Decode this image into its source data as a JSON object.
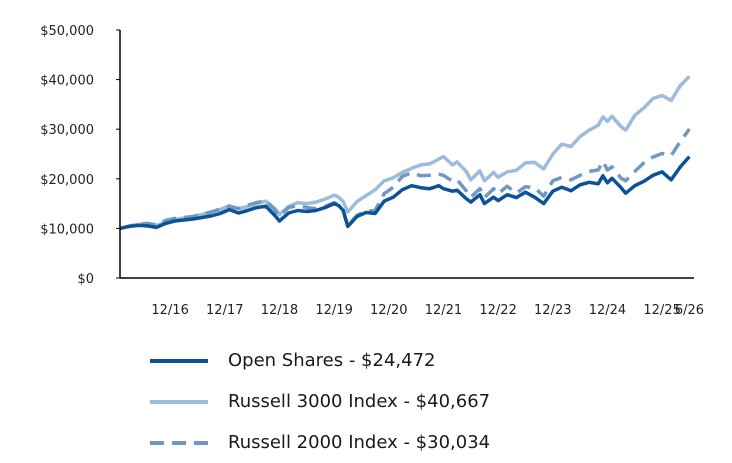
{
  "chart_data": {
    "type": "line",
    "ylim": [
      0,
      50000
    ],
    "y_ticks": [
      {
        "value": 0,
        "label": "$0"
      },
      {
        "value": 10000,
        "label": "$10,000"
      },
      {
        "value": 20000,
        "label": "$20,000"
      },
      {
        "value": 30000,
        "label": "$30,000"
      },
      {
        "value": 40000,
        "label": "$40,000"
      },
      {
        "value": 50000,
        "label": "$50,000"
      }
    ],
    "x_ticks": [
      {
        "date": "2016-12",
        "label": "12/16"
      },
      {
        "date": "2017-12",
        "label": "12/17"
      },
      {
        "date": "2018-12",
        "label": "12/18"
      },
      {
        "date": "2019-12",
        "label": "12/19"
      },
      {
        "date": "2020-12",
        "label": "12/20"
      },
      {
        "date": "2021-12",
        "label": "12/21"
      },
      {
        "date": "2022-12",
        "label": "12/22"
      },
      {
        "date": "2023-12",
        "label": "12/23"
      },
      {
        "date": "2024-12",
        "label": "12/24"
      },
      {
        "date": "2025-12",
        "label": "12/25"
      },
      {
        "date": "2026-06",
        "label": "6/26"
      }
    ],
    "xlim": [
      "2016-01",
      "2026-07"
    ],
    "grid": false,
    "legend_position": "bottom",
    "series": [
      {
        "name": "Open Shares - $24,472",
        "color": "#0c5296",
        "dash": "solid",
        "points": [
          [
            "2016-01",
            10000
          ],
          [
            "2016-03",
            10400
          ],
          [
            "2016-05",
            10600
          ],
          [
            "2016-07",
            10500
          ],
          [
            "2016-09",
            10200
          ],
          [
            "2016-11",
            11000
          ],
          [
            "2017-01",
            11500
          ],
          [
            "2017-03",
            11700
          ],
          [
            "2017-05",
            11900
          ],
          [
            "2017-07",
            12200
          ],
          [
            "2017-09",
            12500
          ],
          [
            "2017-11",
            13000
          ],
          [
            "2018-01",
            13800
          ],
          [
            "2018-03",
            13100
          ],
          [
            "2018-05",
            13600
          ],
          [
            "2018-07",
            14200
          ],
          [
            "2018-09",
            14500
          ],
          [
            "2018-11",
            12600
          ],
          [
            "2018-12",
            11500
          ],
          [
            "2019-02",
            13100
          ],
          [
            "2019-04",
            13600
          ],
          [
            "2019-06",
            13400
          ],
          [
            "2019-08",
            13600
          ],
          [
            "2019-10",
            14200
          ],
          [
            "2019-12",
            15000
          ],
          [
            "2020-01",
            14600
          ],
          [
            "2020-02",
            13600
          ],
          [
            "2020-03",
            10400
          ],
          [
            "2020-05",
            12400
          ],
          [
            "2020-07",
            13200
          ],
          [
            "2020-09",
            13000
          ],
          [
            "2020-11",
            15500
          ],
          [
            "2021-01",
            16300
          ],
          [
            "2021-03",
            17800
          ],
          [
            "2021-05",
            18600
          ],
          [
            "2021-07",
            18200
          ],
          [
            "2021-09",
            18000
          ],
          [
            "2021-11",
            18600
          ],
          [
            "2021-12",
            18000
          ],
          [
            "2022-02",
            17500
          ],
          [
            "2022-03",
            17700
          ],
          [
            "2022-05",
            16000
          ],
          [
            "2022-06",
            15300
          ],
          [
            "2022-08",
            16800
          ],
          [
            "2022-09",
            15000
          ],
          [
            "2022-11",
            16300
          ],
          [
            "2022-12",
            15600
          ],
          [
            "2023-02",
            16800
          ],
          [
            "2023-04",
            16200
          ],
          [
            "2023-06",
            17300
          ],
          [
            "2023-08",
            16300
          ],
          [
            "2023-10",
            15000
          ],
          [
            "2023-12",
            17500
          ],
          [
            "2024-02",
            18300
          ],
          [
            "2024-04",
            17600
          ],
          [
            "2024-06",
            18800
          ],
          [
            "2024-08",
            19300
          ],
          [
            "2024-10",
            19000
          ],
          [
            "2024-11",
            20600
          ],
          [
            "2024-12",
            19200
          ],
          [
            "2025-01",
            20100
          ],
          [
            "2025-03",
            18200
          ],
          [
            "2025-04",
            17100
          ],
          [
            "2025-06",
            18600
          ],
          [
            "2025-08",
            19500
          ],
          [
            "2025-10",
            20700
          ],
          [
            "2025-12",
            21400
          ],
          [
            "2026-02",
            19800
          ],
          [
            "2026-04",
            22400
          ],
          [
            "2026-06",
            24472
          ]
        ]
      },
      {
        "name": "Russell 3000 Index - $40,667",
        "color": "#9bbcdc",
        "dash": "solid",
        "points": [
          [
            "2016-01",
            10000
          ],
          [
            "2016-03",
            10500
          ],
          [
            "2016-05",
            10800
          ],
          [
            "2016-07",
            10900
          ],
          [
            "2016-09",
            10600
          ],
          [
            "2016-11",
            11200
          ],
          [
            "2017-01",
            11800
          ],
          [
            "2017-03",
            12100
          ],
          [
            "2017-05",
            12400
          ],
          [
            "2017-07",
            12800
          ],
          [
            "2017-09",
            13200
          ],
          [
            "2017-11",
            13800
          ],
          [
            "2018-01",
            14600
          ],
          [
            "2018-03",
            14000
          ],
          [
            "2018-05",
            14400
          ],
          [
            "2018-07",
            15000
          ],
          [
            "2018-09",
            15500
          ],
          [
            "2018-11",
            14000
          ],
          [
            "2018-12",
            12800
          ],
          [
            "2019-02",
            14400
          ],
          [
            "2019-04",
            15200
          ],
          [
            "2019-06",
            15000
          ],
          [
            "2019-08",
            15300
          ],
          [
            "2019-10",
            15900
          ],
          [
            "2019-12",
            16700
          ],
          [
            "2020-01",
            16300
          ],
          [
            "2020-02",
            15400
          ],
          [
            "2020-03",
            13300
          ],
          [
            "2020-05",
            15400
          ],
          [
            "2020-07",
            16600
          ],
          [
            "2020-09",
            17800
          ],
          [
            "2020-11",
            19600
          ],
          [
            "2021-01",
            20200
          ],
          [
            "2021-03",
            21300
          ],
          [
            "2021-05",
            22100
          ],
          [
            "2021-07",
            22800
          ],
          [
            "2021-09",
            23000
          ],
          [
            "2021-11",
            24000
          ],
          [
            "2021-12",
            24500
          ],
          [
            "2022-02",
            22800
          ],
          [
            "2022-03",
            23400
          ],
          [
            "2022-05",
            21500
          ],
          [
            "2022-06",
            19800
          ],
          [
            "2022-08",
            21600
          ],
          [
            "2022-09",
            19600
          ],
          [
            "2022-11",
            21300
          ],
          [
            "2022-12",
            20300
          ],
          [
            "2023-02",
            21400
          ],
          [
            "2023-04",
            21700
          ],
          [
            "2023-06",
            23200
          ],
          [
            "2023-08",
            23300
          ],
          [
            "2023-10",
            22000
          ],
          [
            "2023-12",
            25000
          ],
          [
            "2024-02",
            27000
          ],
          [
            "2024-04",
            26500
          ],
          [
            "2024-06",
            28500
          ],
          [
            "2024-08",
            29800
          ],
          [
            "2024-10",
            30800
          ],
          [
            "2024-11",
            32500
          ],
          [
            "2024-12",
            31600
          ],
          [
            "2025-01",
            32600
          ],
          [
            "2025-03",
            30500
          ],
          [
            "2025-04",
            29800
          ],
          [
            "2025-06",
            32800
          ],
          [
            "2025-08",
            34300
          ],
          [
            "2025-10",
            36200
          ],
          [
            "2025-12",
            36800
          ],
          [
            "2026-02",
            35800
          ],
          [
            "2026-04",
            38800
          ],
          [
            "2026-06",
            40667
          ]
        ]
      },
      {
        "name": "Russell 2000 Index - $30,034",
        "color": "#6f98c4",
        "dash": "dashed",
        "points": [
          [
            "2016-01",
            10000
          ],
          [
            "2016-03",
            10400
          ],
          [
            "2016-05",
            10800
          ],
          [
            "2016-07",
            11000
          ],
          [
            "2016-09",
            10700
          ],
          [
            "2016-11",
            11600
          ],
          [
            "2017-01",
            12000
          ],
          [
            "2017-03",
            12200
          ],
          [
            "2017-05",
            12400
          ],
          [
            "2017-07",
            12900
          ],
          [
            "2017-09",
            13300
          ],
          [
            "2017-11",
            13900
          ],
          [
            "2018-01",
            14400
          ],
          [
            "2018-03",
            14000
          ],
          [
            "2018-05",
            14700
          ],
          [
            "2018-07",
            15200
          ],
          [
            "2018-09",
            15600
          ],
          [
            "2018-11",
            13700
          ],
          [
            "2018-12",
            12500
          ],
          [
            "2019-02",
            14200
          ],
          [
            "2019-04",
            14600
          ],
          [
            "2019-06",
            14200
          ],
          [
            "2019-08",
            14000
          ],
          [
            "2019-10",
            14400
          ],
          [
            "2019-12",
            15200
          ],
          [
            "2020-01",
            14700
          ],
          [
            "2020-02",
            13600
          ],
          [
            "2020-03",
            10500
          ],
          [
            "2020-05",
            12600
          ],
          [
            "2020-07",
            13500
          ],
          [
            "2020-09",
            13600
          ],
          [
            "2020-11",
            17000
          ],
          [
            "2021-01",
            18300
          ],
          [
            "2021-03",
            20500
          ],
          [
            "2021-05",
            21200
          ],
          [
            "2021-07",
            20600
          ],
          [
            "2021-09",
            20700
          ],
          [
            "2021-11",
            20900
          ],
          [
            "2021-12",
            20700
          ],
          [
            "2022-02",
            19500
          ],
          [
            "2022-03",
            19800
          ],
          [
            "2022-05",
            17600
          ],
          [
            "2022-06",
            16300
          ],
          [
            "2022-08",
            18000
          ],
          [
            "2022-09",
            16200
          ],
          [
            "2022-11",
            18000
          ],
          [
            "2022-12",
            17000
          ],
          [
            "2023-02",
            18500
          ],
          [
            "2023-04",
            17100
          ],
          [
            "2023-06",
            18400
          ],
          [
            "2023-08",
            18200
          ],
          [
            "2023-10",
            16500
          ],
          [
            "2023-12",
            19600
          ],
          [
            "2024-02",
            20300
          ],
          [
            "2024-04",
            19800
          ],
          [
            "2024-06",
            20700
          ],
          [
            "2024-08",
            21500
          ],
          [
            "2024-10",
            21800
          ],
          [
            "2024-11",
            23500
          ],
          [
            "2024-12",
            21800
          ],
          [
            "2025-01",
            22400
          ],
          [
            "2025-03",
            20100
          ],
          [
            "2025-04",
            19600
          ],
          [
            "2025-06",
            21500
          ],
          [
            "2025-08",
            23200
          ],
          [
            "2025-10",
            24400
          ],
          [
            "2025-12",
            25100
          ],
          [
            "2026-02",
            24700
          ],
          [
            "2026-04",
            27500
          ],
          [
            "2026-06",
            30034
          ]
        ]
      }
    ]
  }
}
